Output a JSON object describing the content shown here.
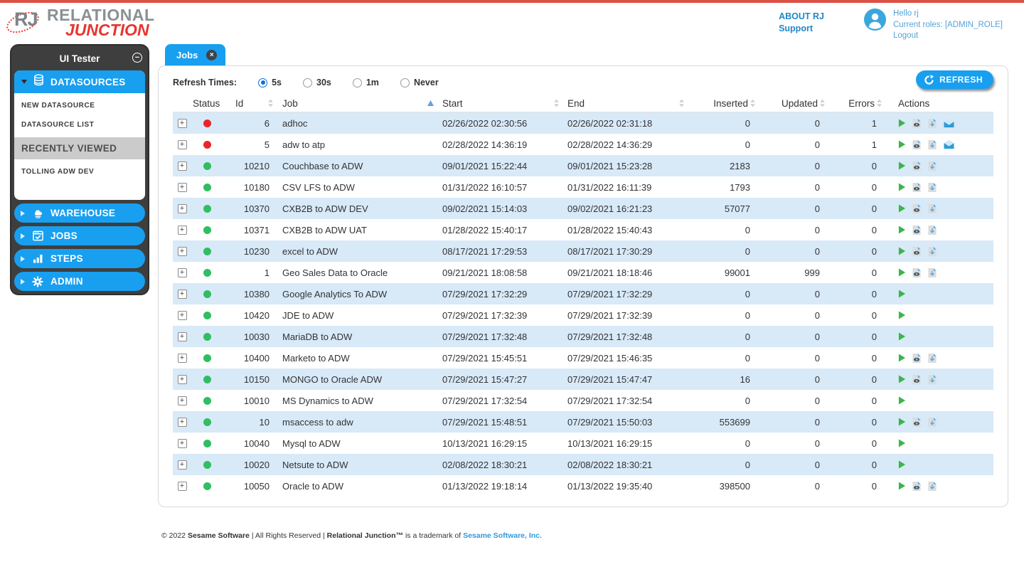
{
  "brand": {
    "mark": "RJ",
    "name_line1": "RELATIONAL",
    "name_line2": "JUNCTION"
  },
  "header_links": {
    "about": "ABOUT RJ",
    "support": "Support"
  },
  "user_panel": {
    "greeting": "Hello rj",
    "roles": "Current roles: [ADMIN_ROLE]",
    "logout": "Logout"
  },
  "icons": {
    "collapse": "−",
    "close": "×",
    "expand": "+"
  },
  "sidebar": {
    "title": "UI Tester",
    "datasources": {
      "label": "DATASOURCES",
      "items": [
        "NEW DATASOURCE",
        "DATASOURCE LIST"
      ],
      "recently_viewed_label": "RECENTLY VIEWED",
      "recent_items": [
        "TOLLING ADW DEV"
      ]
    },
    "modules": [
      "WAREHOUSE",
      "JOBS",
      "STEPS",
      "ADMIN"
    ]
  },
  "tab": {
    "label": "Jobs"
  },
  "toolbar": {
    "refresh_label": "Refresh Times:",
    "options": [
      {
        "label": "5s",
        "selected": true
      },
      {
        "label": "30s",
        "selected": false
      },
      {
        "label": "1m",
        "selected": false
      },
      {
        "label": "Never",
        "selected": false
      }
    ],
    "refresh_button": "REFRESH"
  },
  "table": {
    "columns": [
      {
        "label": "",
        "sort": "none"
      },
      {
        "label": "Status",
        "sort": "none"
      },
      {
        "label": "Id",
        "sort": "both"
      },
      {
        "label": "Job",
        "sort": "asc"
      },
      {
        "label": "Start",
        "sort": "both"
      },
      {
        "label": "End",
        "sort": "both"
      },
      {
        "label": "Inserted",
        "sort": "both"
      },
      {
        "label": "Updated",
        "sort": "both"
      },
      {
        "label": "Errors",
        "sort": "both"
      },
      {
        "label": "Actions",
        "sort": "none"
      }
    ],
    "rows": [
      {
        "status": "error",
        "id": "6",
        "job": "adhoc",
        "start": "02/26/2022 02:30:56",
        "end": "02/26/2022 02:31:18",
        "inserted": "0",
        "updated": "0",
        "errors": "1",
        "actions": [
          "run",
          "view-log",
          "download-log",
          "email"
        ]
      },
      {
        "status": "error",
        "id": "5",
        "job": "adw to atp",
        "start": "02/28/2022 14:36:19",
        "end": "02/28/2022 14:36:29",
        "inserted": "0",
        "updated": "0",
        "errors": "1",
        "actions": [
          "run",
          "view-log",
          "download-log",
          "email"
        ]
      },
      {
        "status": "ok",
        "id": "10210",
        "job": "Couchbase to ADW",
        "start": "09/01/2021 15:22:44",
        "end": "09/01/2021 15:23:28",
        "inserted": "2183",
        "updated": "0",
        "errors": "0",
        "actions": [
          "run",
          "view-log",
          "download-log"
        ]
      },
      {
        "status": "ok",
        "id": "10180",
        "job": "CSV LFS to ADW",
        "start": "01/31/2022 16:10:57",
        "end": "01/31/2022 16:11:39",
        "inserted": "1793",
        "updated": "0",
        "errors": "0",
        "actions": [
          "run",
          "view-log",
          "download-log"
        ]
      },
      {
        "status": "ok",
        "id": "10370",
        "job": "CXB2B to ADW DEV",
        "start": "09/02/2021 15:14:03",
        "end": "09/02/2021 16:21:23",
        "inserted": "57077",
        "updated": "0",
        "errors": "0",
        "actions": [
          "run",
          "view-log",
          "download-log"
        ]
      },
      {
        "status": "ok",
        "id": "10371",
        "job": "CXB2B to ADW UAT",
        "start": "01/28/2022 15:40:17",
        "end": "01/28/2022 15:40:43",
        "inserted": "0",
        "updated": "0",
        "errors": "0",
        "actions": [
          "run",
          "view-log",
          "download-log"
        ]
      },
      {
        "status": "ok",
        "id": "10230",
        "job": "excel to ADW",
        "start": "08/17/2021 17:29:53",
        "end": "08/17/2021 17:30:29",
        "inserted": "0",
        "updated": "0",
        "errors": "0",
        "actions": [
          "run",
          "view-log",
          "download-log"
        ]
      },
      {
        "status": "ok",
        "id": "1",
        "job": "Geo Sales Data to Oracle",
        "start": "09/21/2021 18:08:58",
        "end": "09/21/2021 18:18:46",
        "inserted": "99001",
        "updated": "999",
        "errors": "0",
        "actions": [
          "run",
          "view-log",
          "download-log"
        ]
      },
      {
        "status": "ok",
        "id": "10380",
        "job": "Google Analytics To ADW",
        "start": "07/29/2021 17:32:29",
        "end": "07/29/2021 17:32:29",
        "inserted": "0",
        "updated": "0",
        "errors": "0",
        "actions": [
          "run"
        ]
      },
      {
        "status": "ok",
        "id": "10420",
        "job": "JDE to ADW",
        "start": "07/29/2021 17:32:39",
        "end": "07/29/2021 17:32:39",
        "inserted": "0",
        "updated": "0",
        "errors": "0",
        "actions": [
          "run"
        ]
      },
      {
        "status": "ok",
        "id": "10030",
        "job": "MariaDB to ADW",
        "start": "07/29/2021 17:32:48",
        "end": "07/29/2021 17:32:48",
        "inserted": "0",
        "updated": "0",
        "errors": "0",
        "actions": [
          "run"
        ]
      },
      {
        "status": "ok",
        "id": "10400",
        "job": "Marketo to ADW",
        "start": "07/29/2021 15:45:51",
        "end": "07/29/2021 15:46:35",
        "inserted": "0",
        "updated": "0",
        "errors": "0",
        "actions": [
          "run",
          "view-log",
          "download-log"
        ]
      },
      {
        "status": "ok",
        "id": "10150",
        "job": "MONGO to Oracle ADW",
        "start": "07/29/2021 15:47:27",
        "end": "07/29/2021 15:47:47",
        "inserted": "16",
        "updated": "0",
        "errors": "0",
        "actions": [
          "run",
          "view-log",
          "download-log"
        ]
      },
      {
        "status": "ok",
        "id": "10010",
        "job": "MS Dynamics to ADW",
        "start": "07/29/2021 17:32:54",
        "end": "07/29/2021 17:32:54",
        "inserted": "0",
        "updated": "0",
        "errors": "0",
        "actions": [
          "run"
        ]
      },
      {
        "status": "ok",
        "id": "10",
        "job": "msaccess to adw",
        "start": "07/29/2021 15:48:51",
        "end": "07/29/2021 15:50:03",
        "inserted": "553699",
        "updated": "0",
        "errors": "0",
        "actions": [
          "run",
          "view-log",
          "download-log"
        ]
      },
      {
        "status": "ok",
        "id": "10040",
        "job": "Mysql to ADW",
        "start": "10/13/2021 16:29:15",
        "end": "10/13/2021 16:29:15",
        "inserted": "0",
        "updated": "0",
        "errors": "0",
        "actions": [
          "run"
        ]
      },
      {
        "status": "ok",
        "id": "10020",
        "job": "Netsute to ADW",
        "start": "02/08/2022 18:30:21",
        "end": "02/08/2022 18:30:21",
        "inserted": "0",
        "updated": "0",
        "errors": "0",
        "actions": [
          "run"
        ]
      },
      {
        "status": "ok",
        "id": "10050",
        "job": "Oracle to ADW",
        "start": "01/13/2022 19:18:14",
        "end": "01/13/2022 19:35:40",
        "inserted": "398500",
        "updated": "0",
        "errors": "0",
        "actions": [
          "run",
          "view-log",
          "download-log"
        ]
      }
    ]
  },
  "footer": {
    "prefix": "© 2022",
    "company": "Sesame Software",
    "separator": "| All Rights Reserved |",
    "product": "Relational Junction™",
    "suffix": "is a trademark of",
    "link": "Sesame Software, Inc."
  },
  "colors": {
    "accent_blue": "#189ff0",
    "status_ok": "#2fbe62",
    "status_error": "#e8262a",
    "row_alt_blue": "#d8e9f8"
  }
}
